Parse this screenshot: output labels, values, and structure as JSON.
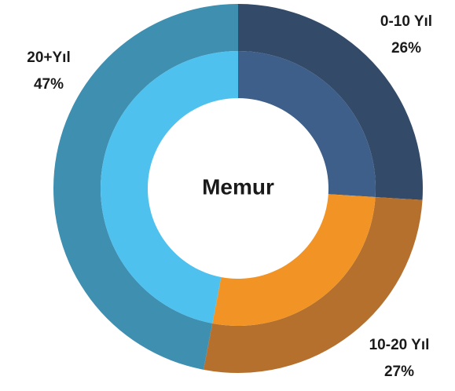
{
  "chart_data": {
    "type": "donut",
    "center_label": "Memur",
    "categories": [
      "0-10 Yıl",
      "10-20 Yıl",
      "20+Yıl"
    ],
    "values": [
      26,
      27,
      47
    ],
    "value_labels": [
      "26%",
      "27%",
      "47%"
    ],
    "outer_colors": [
      "#334a68",
      "#b5702e",
      "#3e8fb0"
    ],
    "inner_colors": [
      "#3d5f8a",
      "#f19425",
      "#4fc1ef"
    ]
  }
}
